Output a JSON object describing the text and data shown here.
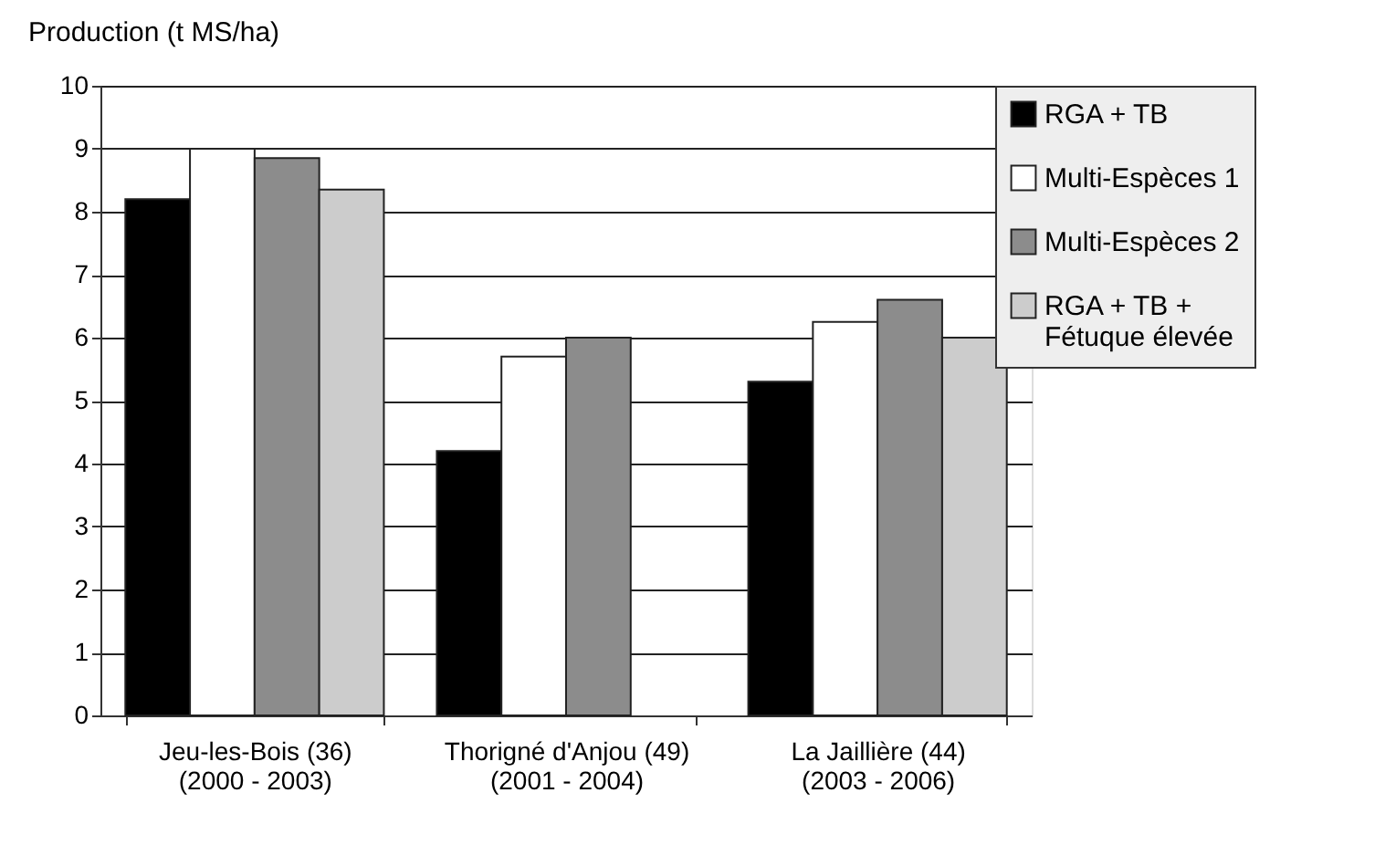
{
  "chart_data": {
    "type": "bar",
    "ylabel": "Production (t MS/ha)",
    "categories": [
      "Jeu-les-Bois (36)\n(2000 - 2003)",
      "Thorigné d'Anjou (49)\n(2001 - 2004)",
      "La Jaillière (44)\n(2003 - 2006)"
    ],
    "series": [
      {
        "name": "RGA + TB",
        "color": "#000000",
        "values": [
          8.2,
          4.2,
          5.3
        ]
      },
      {
        "name": "Multi-Espèces 1",
        "color": "#ffffff",
        "values": [
          9.0,
          5.7,
          6.25
        ]
      },
      {
        "name": "Multi-Espèces 2",
        "color": "#8c8c8c",
        "values": [
          8.85,
          6.0,
          6.6
        ]
      },
      {
        "name": "RGA + TB +\nFétuque élevée",
        "color": "#cccccc",
        "values": [
          8.35,
          null,
          6.0
        ]
      }
    ],
    "ylim": [
      0,
      10
    ],
    "yticks": [
      0,
      1,
      2,
      3,
      4,
      5,
      6,
      7,
      8,
      9,
      10
    ],
    "grid": "y",
    "legend": "right"
  }
}
